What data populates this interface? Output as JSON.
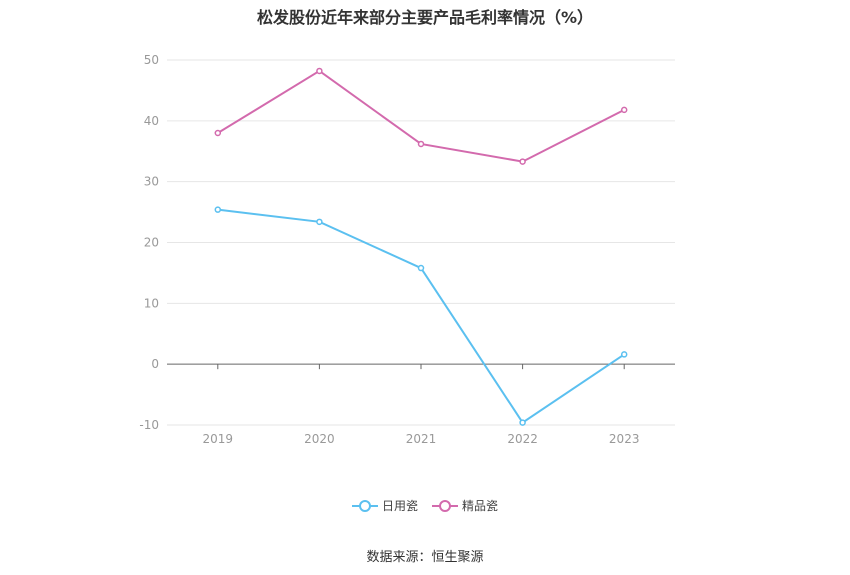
{
  "chart_data": {
    "type": "line",
    "title": "松发股份近年来部分主要产品毛利率情况（%）",
    "categories": [
      "2019",
      "2020",
      "2021",
      "2022",
      "2023"
    ],
    "series": [
      {
        "name": "日用瓷",
        "color": "#5bc0f0",
        "values": [
          25.4,
          23.4,
          15.8,
          -9.6,
          1.6
        ]
      },
      {
        "name": "精品瓷",
        "color": "#d36aad",
        "values": [
          38.0,
          48.2,
          36.2,
          33.3,
          41.8
        ]
      }
    ],
    "ylim": [
      -10,
      50
    ],
    "yticks": [
      50,
      40,
      30,
      20,
      10,
      0,
      -10
    ],
    "xlabel": "",
    "ylabel": "",
    "grid": true,
    "legend_position": "bottom"
  },
  "source_text": "数据来源：恒生聚源"
}
